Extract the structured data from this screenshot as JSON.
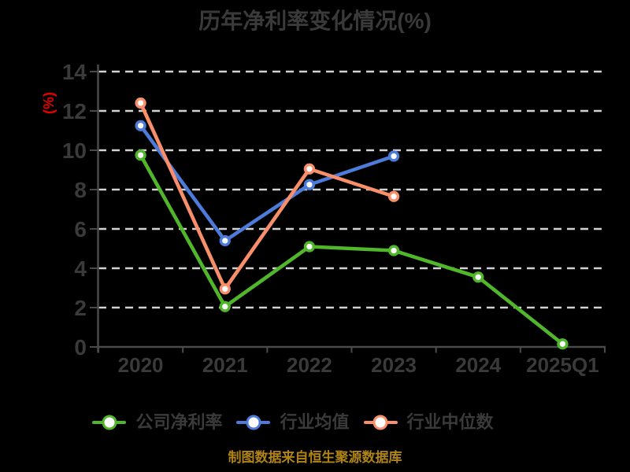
{
  "title": "历年净利率变化情况(%)",
  "footer": {
    "text": "制图数据来自恒生聚源数据库",
    "color": "#B08414"
  },
  "colors": {
    "background": "#000000",
    "text": "#3A3A3A",
    "axis": "#4A4A4A",
    "grid": "#D2D2D2",
    "ylabel_red": "#E60000",
    "marker_fill": "#FFFFFF"
  },
  "chart_data": {
    "type": "line",
    "title": "历年净利率变化情况(%)",
    "xlabel": "",
    "ylabel": "(%)",
    "categories": [
      "2020",
      "2021",
      "2022",
      "2023",
      "2024",
      "2025Q1"
    ],
    "series": [
      {
        "name": "公司净利率",
        "color": "#50B62A",
        "values": [
          9.75,
          2.05,
          5.1,
          4.9,
          3.55,
          0.15
        ]
      },
      {
        "name": "行业均值",
        "color": "#4C7BD9",
        "values": [
          11.25,
          5.4,
          8.25,
          9.7,
          null,
          null
        ]
      },
      {
        "name": "行业中位数",
        "color": "#F98E6A",
        "values": [
          12.4,
          2.95,
          9.05,
          7.65,
          null,
          null
        ]
      }
    ],
    "ylim": [
      0,
      14
    ],
    "yticks": [
      0,
      2,
      4,
      6,
      8,
      10,
      12,
      14
    ],
    "grid": "horizontal dashed",
    "legend_position": "bottom"
  }
}
